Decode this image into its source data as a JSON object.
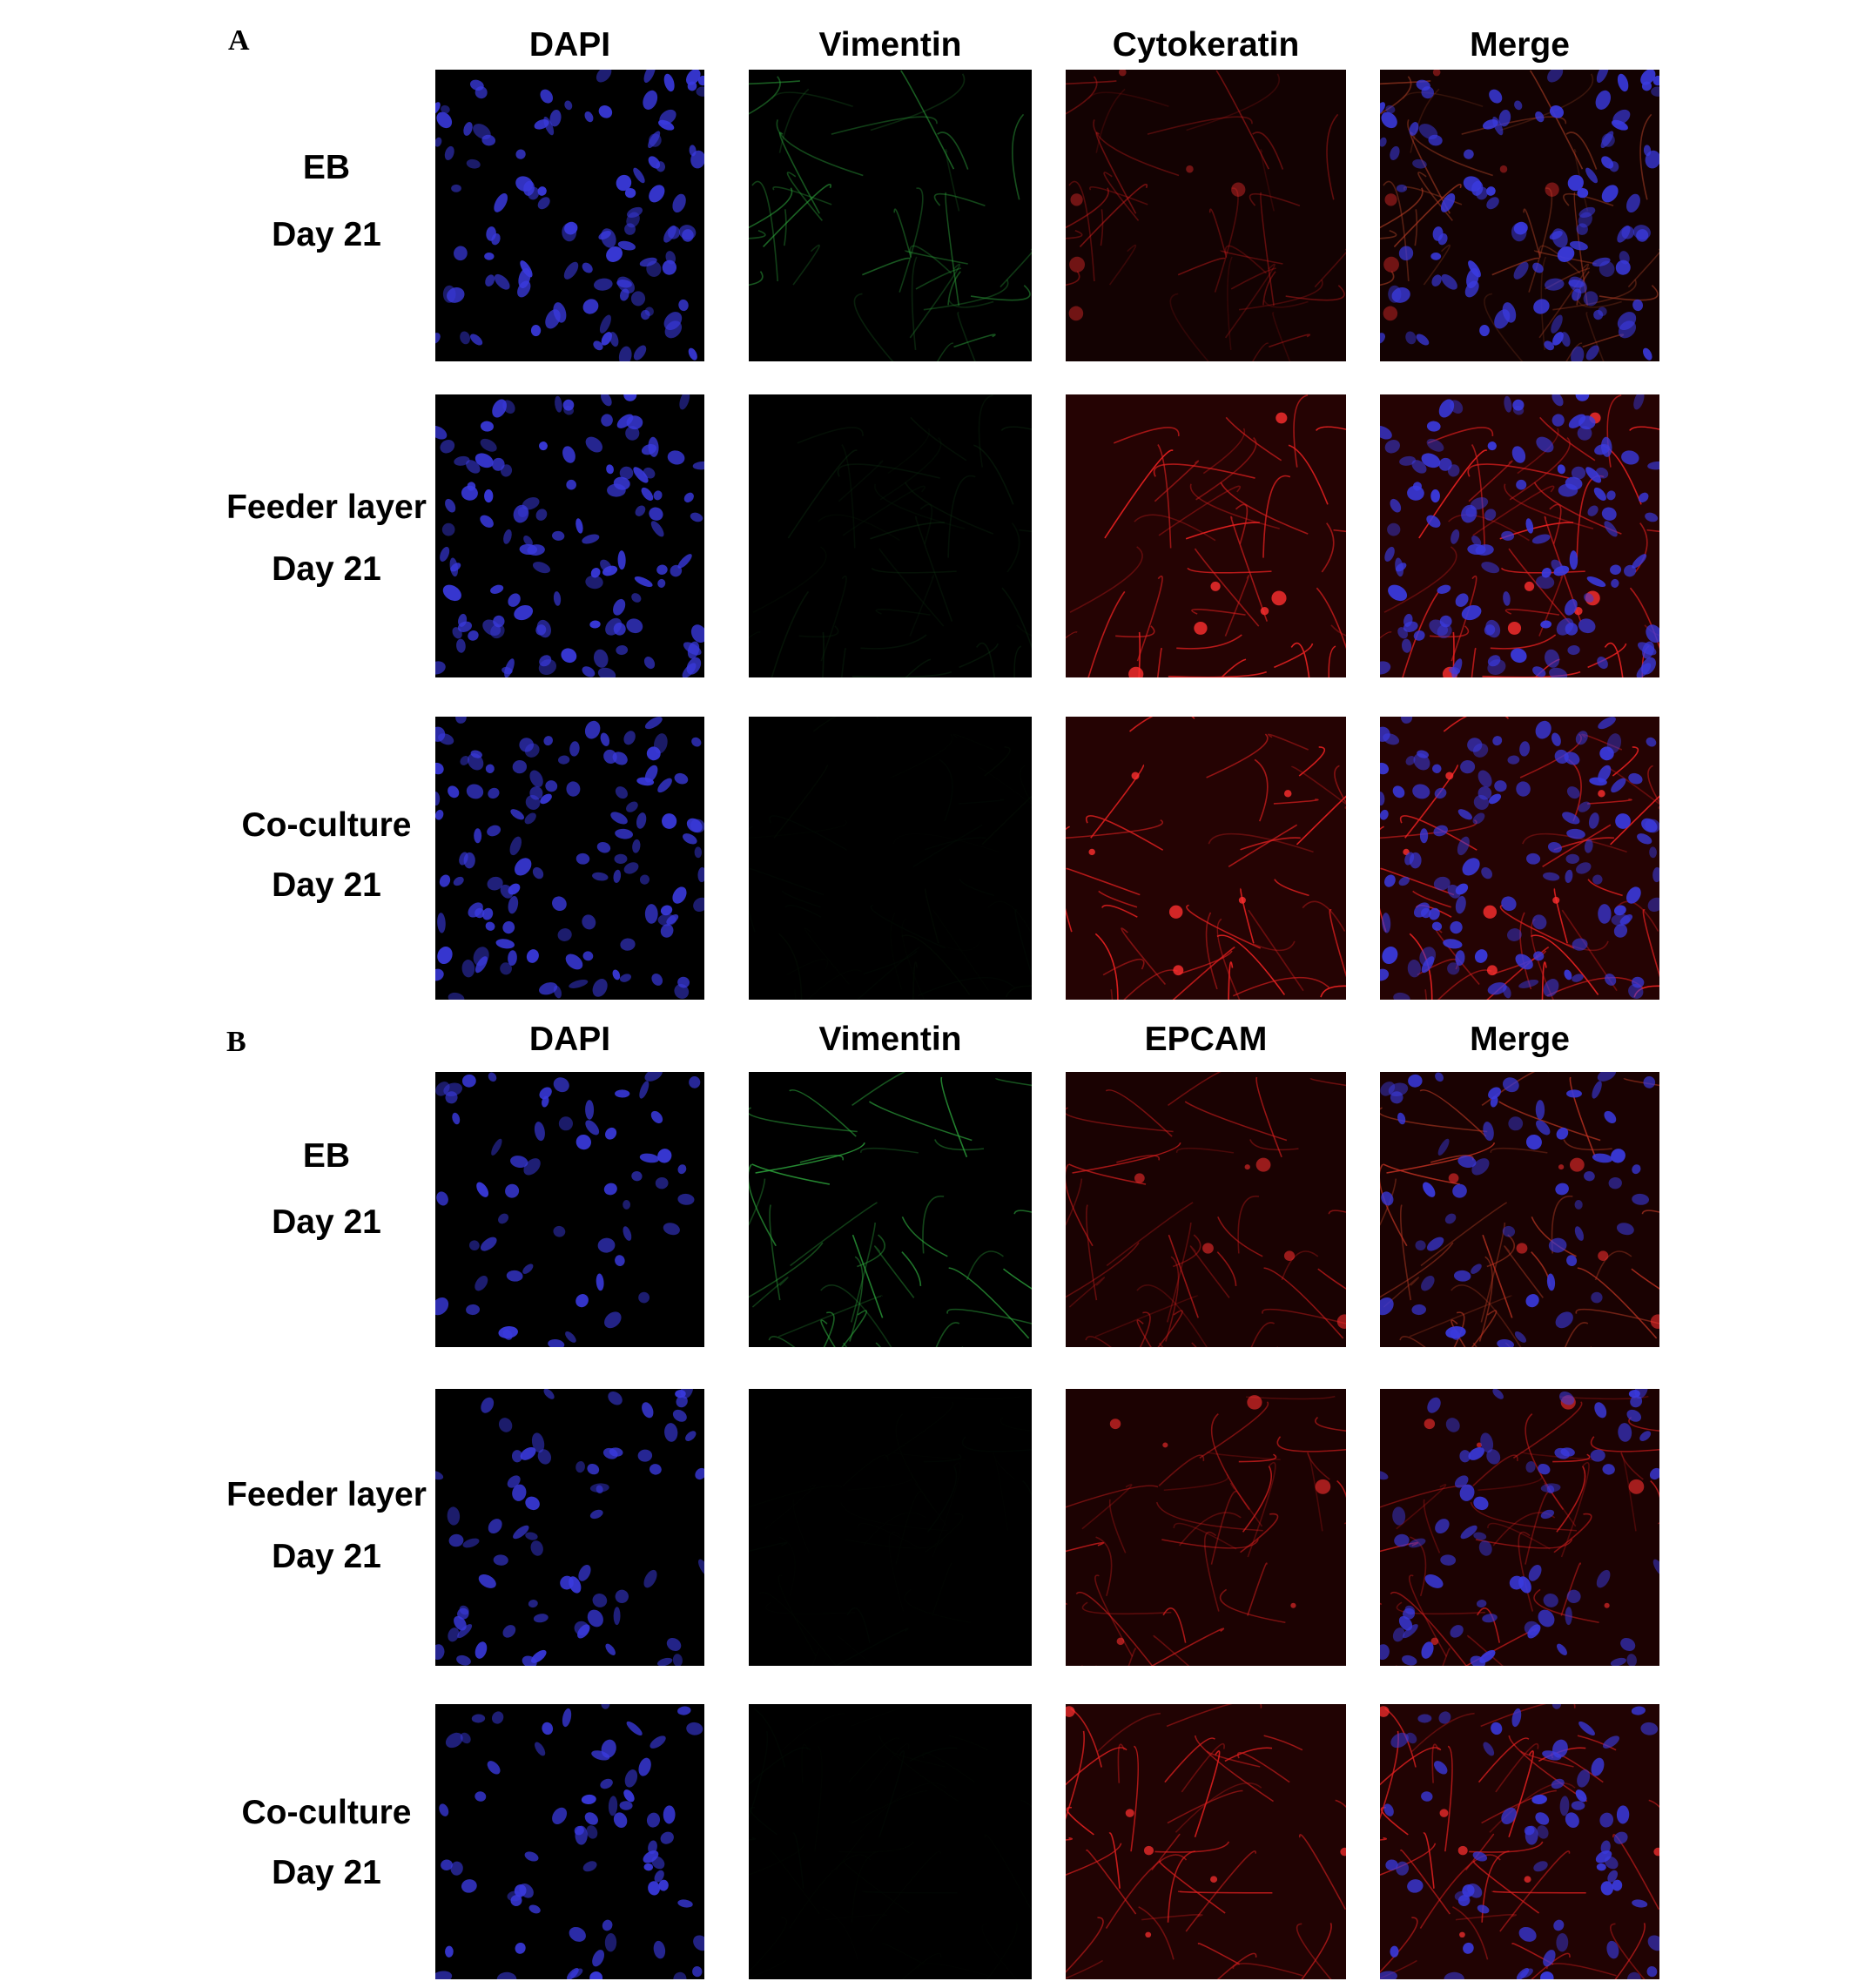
{
  "panels": [
    {
      "letter": "A",
      "columns": [
        "DAPI",
        "Vimentin",
        "Cytokeratin",
        "Merge"
      ],
      "rows": [
        {
          "line1": "EB",
          "line2": "Day 21"
        },
        {
          "line1": "Feeder layer",
          "line2": "Day 21"
        },
        {
          "line1": "Co-culture",
          "line2": "Day 21"
        }
      ]
    },
    {
      "letter": "B",
      "columns": [
        "DAPI",
        "Vimentin",
        "EPCAM",
        "Merge"
      ],
      "rows": [
        {
          "line1": "EB",
          "line2": "Day 21"
        },
        {
          "line1": "Feeder layer",
          "line2": "Day 21"
        },
        {
          "line1": "Co-culture",
          "line2": "Day 21"
        }
      ]
    }
  ],
  "stain_colors": {
    "DAPI": "#3a3adf",
    "Vimentin": "#2fae3f",
    "red": "#e02020"
  }
}
